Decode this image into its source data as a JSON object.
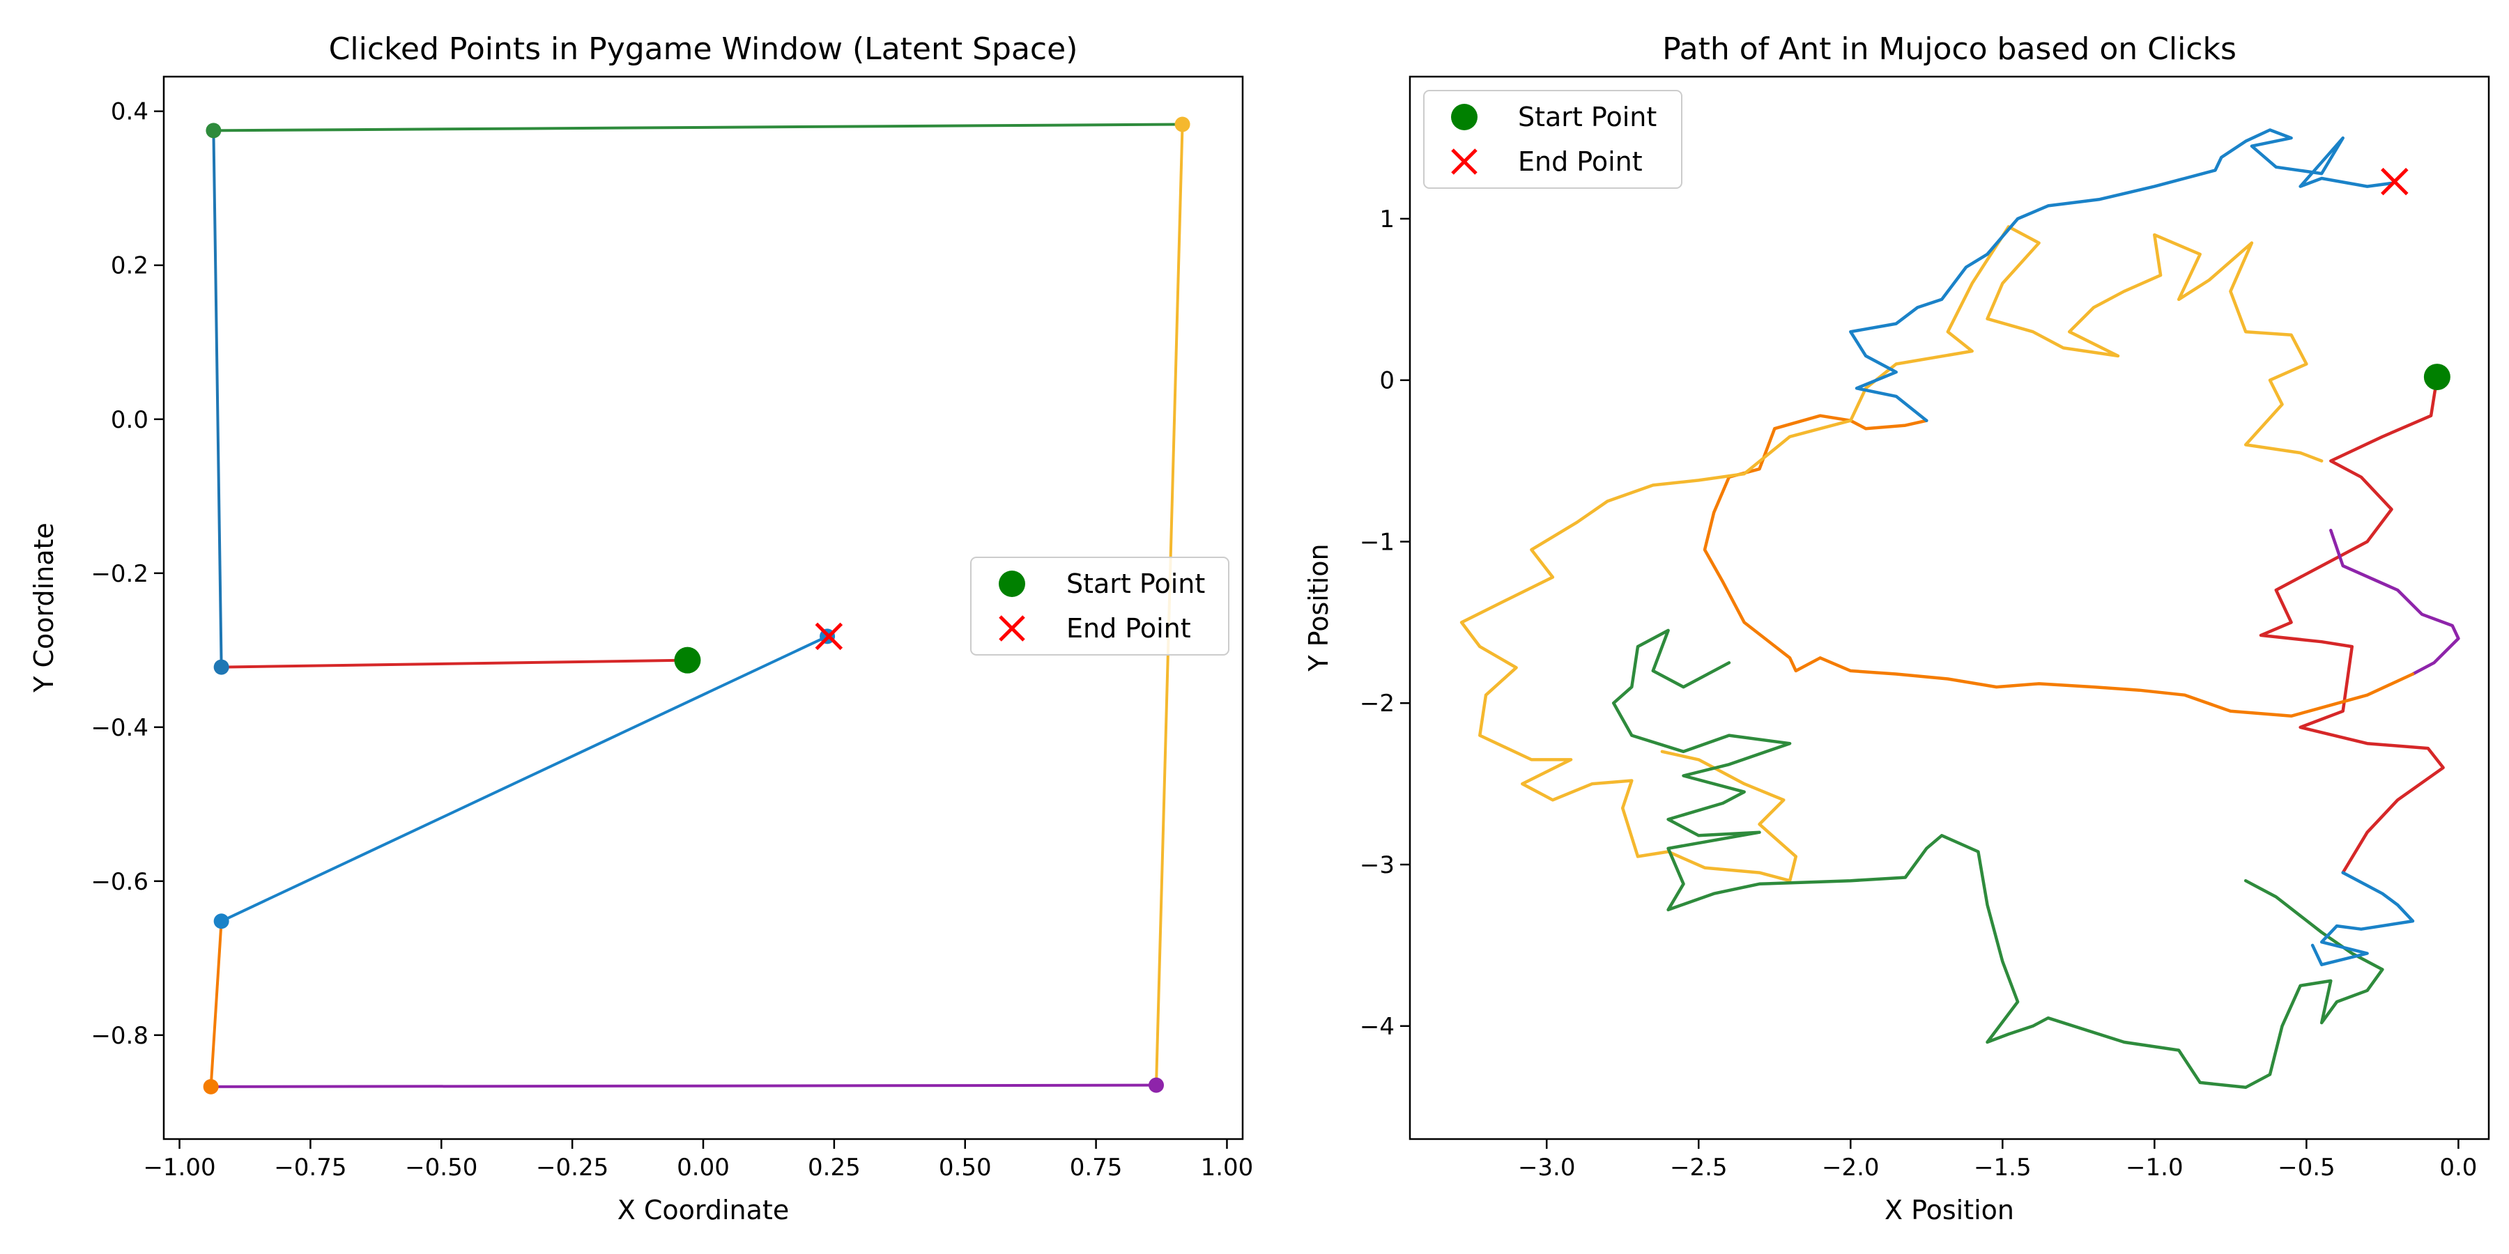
{
  "chart_data": [
    {
      "type": "line",
      "title": "Clicked Points in Pygame Window (Latent Space)",
      "xlabel": "X Coordinate",
      "ylabel": "Y Coordinate",
      "xlim": [
        -1.03,
        1.03
      ],
      "ylim": [
        -0.935,
        0.445
      ],
      "xticks": [
        -1.0,
        -0.75,
        -0.5,
        -0.25,
        0.0,
        0.25,
        0.5,
        0.75,
        1.0
      ],
      "xtick_labels": [
        "−1.00",
        "−0.75",
        "−0.50",
        "−0.25",
        "0.00",
        "0.25",
        "0.50",
        "0.75",
        "1.00"
      ],
      "yticks": [
        0.4,
        0.2,
        0.0,
        -0.2,
        -0.4,
        -0.6,
        -0.8
      ],
      "ytick_labels": [
        "0.4",
        "0.2",
        "0.0",
        "−0.2",
        "−0.4",
        "−0.6",
        "−0.8"
      ],
      "grid": false,
      "legend": {
        "placement": "center-right",
        "entries": [
          "Start Point",
          "End Point"
        ]
      },
      "segments": [
        {
          "color": "#d62728",
          "points": [
            [
              -0.03,
              -0.313
            ],
            [
              -0.92,
              -0.322
            ]
          ]
        },
        {
          "color": "#1f77b4",
          "points": [
            [
              -0.92,
              -0.322
            ],
            [
              -0.935,
              0.375
            ]
          ]
        },
        {
          "color": "#2e8b3c",
          "points": [
            [
              -0.935,
              0.375
            ],
            [
              0.915,
              0.383
            ]
          ]
        },
        {
          "color": "#f5b82e",
          "points": [
            [
              0.915,
              0.383
            ],
            [
              0.865,
              -0.865
            ]
          ]
        },
        {
          "color": "#8e24aa",
          "points": [
            [
              0.865,
              -0.865
            ],
            [
              -0.94,
              -0.867
            ]
          ]
        },
        {
          "color": "#f57c00",
          "points": [
            [
              -0.94,
              -0.867
            ],
            [
              -0.92,
              -0.652
            ]
          ]
        },
        {
          "color": "#1a82c8",
          "points": [
            [
              -0.92,
              -0.652
            ],
            [
              0.237,
              -0.282
            ]
          ]
        }
      ],
      "start_point": [
        -0.03,
        -0.313
      ],
      "end_point": [
        0.24,
        -0.282
      ]
    },
    {
      "type": "line",
      "title": "Path of Ant in Mujoco based on Clicks",
      "xlabel": "X Position",
      "ylabel": "Y Position",
      "xlim": [
        -3.45,
        0.1
      ],
      "ylim": [
        -4.7,
        1.88
      ],
      "xticks": [
        -3.0,
        -2.5,
        -2.0,
        -1.5,
        -1.0,
        -0.5,
        0.0
      ],
      "xtick_labels": [
        "−3.0",
        "−2.5",
        "−2.0",
        "−1.5",
        "−1.0",
        "−0.5",
        "0.0"
      ],
      "yticks": [
        1,
        0,
        -1,
        -2,
        -3,
        -4
      ],
      "ytick_labels": [
        "1",
        "0",
        "−1",
        "−2",
        "−3",
        "−4"
      ],
      "grid": false,
      "legend": {
        "placement": "top-left",
        "entries": [
          "Start Point",
          "End Point"
        ]
      },
      "series": [
        {
          "color": "#d62728",
          "points": [
            [
              -0.07,
              0.02
            ],
            [
              -0.09,
              -0.22
            ],
            [
              -0.25,
              -0.35
            ],
            [
              -0.42,
              -0.5
            ],
            [
              -0.32,
              -0.6
            ],
            [
              -0.22,
              -0.8
            ],
            [
              -0.3,
              -1.0
            ],
            [
              -0.45,
              -1.15
            ],
            [
              -0.6,
              -1.3
            ],
            [
              -0.55,
              -1.5
            ],
            [
              -0.65,
              -1.58
            ],
            [
              -0.45,
              -1.62
            ],
            [
              -0.35,
              -1.65
            ],
            [
              -0.38,
              -2.05
            ],
            [
              -0.52,
              -2.15
            ],
            [
              -0.3,
              -2.25
            ],
            [
              -0.1,
              -2.28
            ],
            [
              -0.05,
              -2.4
            ],
            [
              -0.2,
              -2.6
            ],
            [
              -0.3,
              -2.8
            ],
            [
              -0.38,
              -3.05
            ]
          ]
        },
        {
          "color": "#8e24aa",
          "points": [
            [
              -0.42,
              -0.93
            ],
            [
              -0.38,
              -1.15
            ],
            [
              -0.2,
              -1.3
            ],
            [
              -0.12,
              -1.45
            ],
            [
              -0.02,
              -1.52
            ],
            [
              0.0,
              -1.6
            ],
            [
              -0.08,
              -1.75
            ],
            [
              -0.15,
              -1.82
            ]
          ]
        },
        {
          "color": "#f57c00",
          "points": [
            [
              -0.15,
              -1.82
            ],
            [
              -0.3,
              -1.95
            ],
            [
              -0.55,
              -2.08
            ],
            [
              -0.75,
              -2.05
            ],
            [
              -0.9,
              -1.95
            ],
            [
              -1.05,
              -1.92
            ],
            [
              -1.2,
              -1.9
            ],
            [
              -1.38,
              -1.88
            ],
            [
              -1.52,
              -1.9
            ],
            [
              -1.68,
              -1.85
            ],
            [
              -1.85,
              -1.82
            ],
            [
              -2.0,
              -1.8
            ],
            [
              -2.1,
              -1.72
            ],
            [
              -2.18,
              -1.8
            ],
            [
              -2.2,
              -1.72
            ],
            [
              -2.35,
              -1.5
            ],
            [
              -2.42,
              -1.25
            ],
            [
              -2.48,
              -1.05
            ],
            [
              -2.45,
              -0.82
            ],
            [
              -2.4,
              -0.6
            ],
            [
              -2.3,
              -0.55
            ],
            [
              -2.25,
              -0.3
            ],
            [
              -2.1,
              -0.22
            ],
            [
              -2.0,
              -0.25
            ],
            [
              -1.95,
              -0.3
            ],
            [
              -1.82,
              -0.28
            ],
            [
              -1.75,
              -0.25
            ]
          ]
        },
        {
          "color": "#f5b82e",
          "points": [
            [
              -0.45,
              -0.5
            ],
            [
              -0.52,
              -0.45
            ],
            [
              -0.7,
              -0.4
            ],
            [
              -0.58,
              -0.15
            ],
            [
              -0.62,
              0.0
            ],
            [
              -0.5,
              0.1
            ],
            [
              -0.55,
              0.28
            ],
            [
              -0.7,
              0.3
            ],
            [
              -0.75,
              0.55
            ],
            [
              -0.68,
              0.85
            ],
            [
              -0.82,
              0.62
            ],
            [
              -0.92,
              0.5
            ],
            [
              -0.85,
              0.78
            ],
            [
              -1.0,
              0.9
            ],
            [
              -0.98,
              0.65
            ],
            [
              -1.1,
              0.55
            ],
            [
              -1.2,
              0.45
            ],
            [
              -1.28,
              0.3
            ],
            [
              -1.12,
              0.15
            ],
            [
              -1.3,
              0.2
            ],
            [
              -1.4,
              0.3
            ],
            [
              -1.55,
              0.38
            ],
            [
              -1.5,
              0.6
            ],
            [
              -1.38,
              0.85
            ],
            [
              -1.48,
              0.95
            ],
            [
              -1.6,
              0.6
            ],
            [
              -1.68,
              0.3
            ],
            [
              -1.6,
              0.18
            ],
            [
              -1.85,
              0.1
            ],
            [
              -1.95,
              -0.05
            ],
            [
              -2.0,
              -0.25
            ],
            [
              -2.2,
              -0.35
            ],
            [
              -2.35,
              -0.58
            ],
            [
              -2.5,
              -0.62
            ],
            [
              -2.65,
              -0.65
            ],
            [
              -2.8,
              -0.75
            ],
            [
              -2.9,
              -0.88
            ],
            [
              -3.05,
              -1.05
            ],
            [
              -2.98,
              -1.22
            ],
            [
              -3.12,
              -1.35
            ],
            [
              -3.28,
              -1.5
            ],
            [
              -3.22,
              -1.65
            ],
            [
              -3.1,
              -1.78
            ],
            [
              -3.2,
              -1.95
            ],
            [
              -3.22,
              -2.2
            ],
            [
              -3.05,
              -2.35
            ],
            [
              -2.92,
              -2.35
            ],
            [
              -3.08,
              -2.5
            ],
            [
              -2.98,
              -2.6
            ],
            [
              -2.85,
              -2.5
            ],
            [
              -2.72,
              -2.48
            ],
            [
              -2.75,
              -2.65
            ],
            [
              -2.7,
              -2.95
            ],
            [
              -2.6,
              -2.92
            ],
            [
              -2.48,
              -3.02
            ],
            [
              -2.3,
              -3.05
            ],
            [
              -2.2,
              -3.1
            ],
            [
              -2.18,
              -2.95
            ],
            [
              -2.3,
              -2.75
            ],
            [
              -2.22,
              -2.6
            ],
            [
              -2.35,
              -2.5
            ],
            [
              -2.5,
              -2.35
            ],
            [
              -2.62,
              -2.3
            ]
          ]
        },
        {
          "color": "#2e8b3c",
          "points": [
            [
              -2.4,
              -1.75
            ],
            [
              -2.55,
              -1.9
            ],
            [
              -2.65,
              -1.8
            ],
            [
              -2.6,
              -1.55
            ],
            [
              -2.7,
              -1.65
            ],
            [
              -2.72,
              -1.9
            ],
            [
              -2.78,
              -2.0
            ],
            [
              -2.72,
              -2.2
            ],
            [
              -2.55,
              -2.3
            ],
            [
              -2.4,
              -2.2
            ],
            [
              -2.2,
              -2.25
            ],
            [
              -2.4,
              -2.38
            ],
            [
              -2.55,
              -2.45
            ],
            [
              -2.35,
              -2.55
            ],
            [
              -2.42,
              -2.62
            ],
            [
              -2.6,
              -2.72
            ],
            [
              -2.5,
              -2.82
            ],
            [
              -2.3,
              -2.8
            ],
            [
              -2.6,
              -2.9
            ],
            [
              -2.55,
              -3.12
            ],
            [
              -2.6,
              -3.28
            ],
            [
              -2.45,
              -3.18
            ],
            [
              -2.3,
              -3.12
            ],
            [
              -2.0,
              -3.1
            ],
            [
              -1.82,
              -3.08
            ],
            [
              -1.75,
              -2.9
            ],
            [
              -1.7,
              -2.82
            ],
            [
              -1.58,
              -2.92
            ],
            [
              -1.55,
              -3.25
            ],
            [
              -1.5,
              -3.6
            ],
            [
              -1.45,
              -3.85
            ],
            [
              -1.55,
              -4.1
            ],
            [
              -1.48,
              -4.05
            ],
            [
              -1.4,
              -4.0
            ],
            [
              -1.35,
              -3.95
            ],
            [
              -1.1,
              -4.1
            ],
            [
              -0.92,
              -4.15
            ],
            [
              -0.85,
              -4.35
            ],
            [
              -0.7,
              -4.38
            ],
            [
              -0.62,
              -4.3
            ],
            [
              -0.58,
              -4.0
            ],
            [
              -0.52,
              -3.75
            ],
            [
              -0.42,
              -3.72
            ],
            [
              -0.45,
              -3.98
            ],
            [
              -0.4,
              -3.85
            ],
            [
              -0.3,
              -3.78
            ],
            [
              -0.25,
              -3.65
            ],
            [
              -0.35,
              -3.55
            ],
            [
              -0.45,
              -3.42
            ],
            [
              -0.6,
              -3.2
            ],
            [
              -0.7,
              -3.1
            ]
          ]
        },
        {
          "color": "#1a82c8",
          "points": [
            [
              -0.38,
              -3.05
            ],
            [
              -0.25,
              -3.18
            ],
            [
              -0.2,
              -3.25
            ],
            [
              -0.15,
              -3.35
            ],
            [
              -0.32,
              -3.4
            ],
            [
              -0.4,
              -3.38
            ],
            [
              -0.45,
              -3.48
            ],
            [
              -0.3,
              -3.55
            ],
            [
              -0.45,
              -3.62
            ],
            [
              -0.48,
              -3.5
            ]
          ]
        },
        {
          "color": "#1a82c8",
          "points": [
            [
              -1.75,
              -0.25
            ],
            [
              -1.85,
              -0.1
            ],
            [
              -1.98,
              -0.05
            ],
            [
              -1.85,
              0.05
            ],
            [
              -1.95,
              0.15
            ],
            [
              -2.0,
              0.3
            ],
            [
              -1.85,
              0.35
            ],
            [
              -1.78,
              0.45
            ],
            [
              -1.7,
              0.5
            ],
            [
              -1.62,
              0.7
            ],
            [
              -1.55,
              0.78
            ],
            [
              -1.45,
              1.0
            ],
            [
              -1.35,
              1.08
            ],
            [
              -1.18,
              1.12
            ],
            [
              -1.0,
              1.2
            ],
            [
              -0.9,
              1.25
            ],
            [
              -0.8,
              1.3
            ],
            [
              -0.78,
              1.38
            ],
            [
              -0.7,
              1.48
            ],
            [
              -0.62,
              1.55
            ],
            [
              -0.55,
              1.5
            ],
            [
              -0.68,
              1.45
            ],
            [
              -0.6,
              1.32
            ],
            [
              -0.45,
              1.28
            ],
            [
              -0.38,
              1.5
            ],
            [
              -0.45,
              1.35
            ],
            [
              -0.52,
              1.2
            ],
            [
              -0.45,
              1.25
            ],
            [
              -0.3,
              1.2
            ],
            [
              -0.22,
              1.22
            ]
          ]
        }
      ],
      "start_point": [
        -0.07,
        0.02
      ],
      "end_point": [
        -0.21,
        1.23
      ]
    }
  ]
}
